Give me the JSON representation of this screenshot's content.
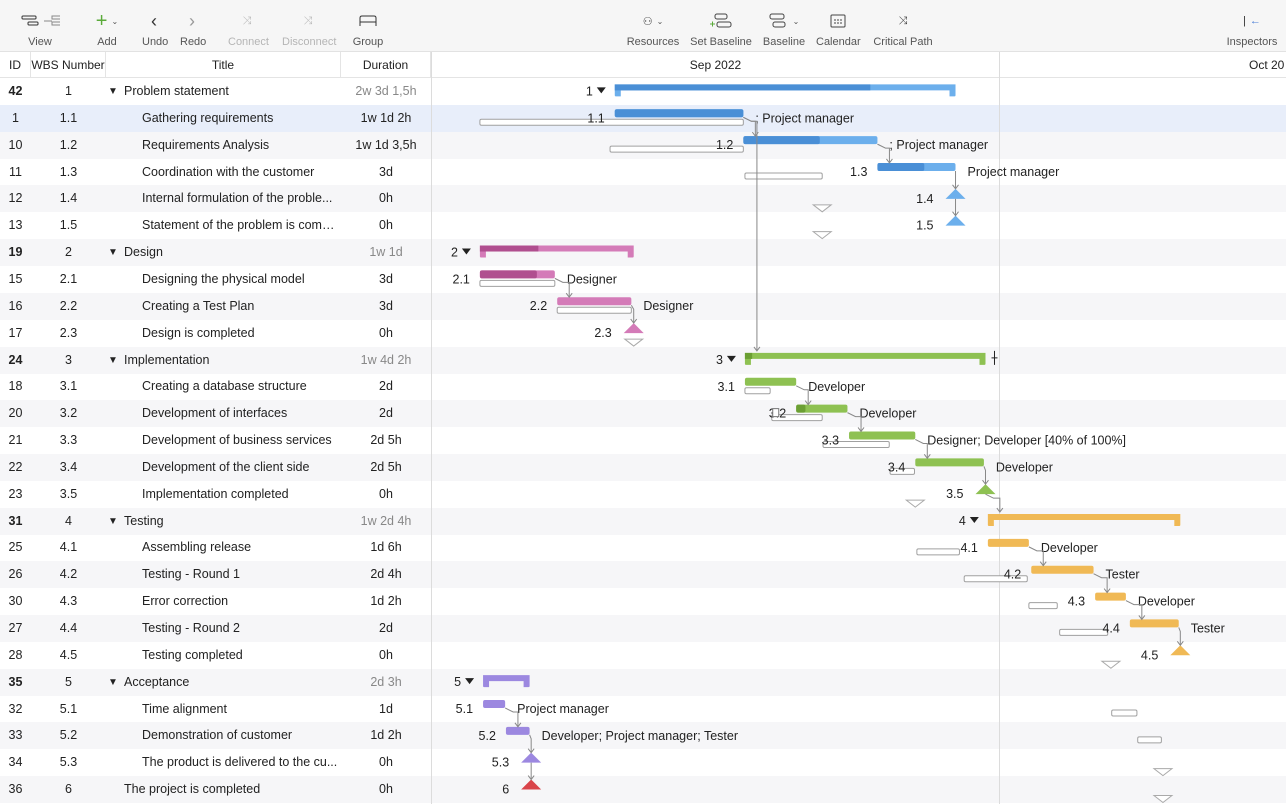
{
  "toolbar": {
    "items": [
      {
        "label": "View",
        "icon": "view-icon"
      },
      {
        "label": "Add",
        "icon": "plus-icon"
      },
      {
        "label": "Undo",
        "icon": "chevron-left-icon"
      },
      {
        "label": "Redo",
        "icon": "chevron-right-icon"
      },
      {
        "label": "Connect",
        "icon": "connect-icon",
        "disabled": true
      },
      {
        "label": "Disconnect",
        "icon": "disconnect-icon",
        "disabled": true
      },
      {
        "label": "Group",
        "icon": "group-icon"
      },
      {
        "label": "Resources",
        "icon": "resources-icon"
      },
      {
        "label": "Set Baseline",
        "icon": "set-baseline-icon"
      },
      {
        "label": "Baseline",
        "icon": "baseline-icon"
      },
      {
        "label": "Calendar",
        "icon": "calendar-icon"
      },
      {
        "label": "Critical Path",
        "icon": "critical-path-icon"
      },
      {
        "label": "Inspectors",
        "icon": "inspectors-icon"
      }
    ]
  },
  "columns": {
    "id": "ID",
    "wbs": "WBS Number",
    "title": "Title",
    "duration": "Duration"
  },
  "timeline": {
    "months": [
      "Sep 2022",
      "Oct 20"
    ]
  },
  "colors": {
    "1": [
      "#4a8fd6",
      "#6cafec"
    ],
    "2": [
      "#b04e8f",
      "#d47bb8"
    ],
    "3": [
      "#6b9f33",
      "#8ec152"
    ],
    "4": [
      "#e0a23c",
      "#f0b955"
    ],
    "5": [
      "#8a74d6",
      "#9c88e0"
    ],
    "6": [
      "#d9444a",
      "#d9444a"
    ],
    "baseline": "#a0a0a0",
    "selected_row": "#e8eefa"
  },
  "rows": [
    {
      "id": "42",
      "wbs": "1",
      "title": "Problem statement",
      "duration": "2w 3d 1,5h",
      "type": "summary",
      "start": "2022-09-10T17:00",
      "finish": "2022-09-28T17:00",
      "progress": 0.75
    },
    {
      "id": "1",
      "wbs": "1.1",
      "title": "Gathering requirements",
      "duration": "1w 1d 2h",
      "type": "task",
      "start": "2022-09-10T17:00",
      "finish": "2022-09-17T12:00",
      "bstart": "2022-09-03T14:00",
      "bfinish": "2022-09-17T12:00",
      "progress": 1,
      "resources": "; Project manager",
      "selected": true
    },
    {
      "id": "10",
      "wbs": "1.2",
      "title": "Requirements Analysis",
      "duration": "1w 1d 3,5h",
      "type": "task",
      "start": "2022-09-17T12:00",
      "finish": "2022-09-24T14:00",
      "bstart": "2022-09-10T11:00",
      "bfinish": "2022-09-17T12:00",
      "progress": 0.57,
      "resources": "; Project manager"
    },
    {
      "id": "11",
      "wbs": "1.3",
      "title": "Coordination with the customer",
      "duration": "3d",
      "type": "task",
      "start": "2022-09-24T14:00",
      "finish": "2022-09-28T17:00",
      "bstart": "2022-09-17T14:00",
      "bfinish": "2022-09-21T16:00",
      "progress": 0.6,
      "resources": "Project manager"
    },
    {
      "id": "12",
      "wbs": "1.4",
      "title": "Internal formulation of the proble...",
      "duration": "0h",
      "type": "milestone",
      "start": "2022-09-28T17:00",
      "bstart": "2022-09-21T16:00"
    },
    {
      "id": "13",
      "wbs": "1.5",
      "title": "Statement of the problem is comp...",
      "duration": "0h",
      "type": "milestone",
      "start": "2022-09-28T17:00",
      "bstart": "2022-09-21T16:00"
    },
    {
      "id": "19",
      "wbs": "2",
      "title": "Design",
      "duration": "1w 1d",
      "type": "summary",
      "start": "2022-09-03T14:00",
      "finish": "2022-09-11T17:00",
      "progress": 0.38
    },
    {
      "id": "15",
      "wbs": "2.1",
      "title": "Designing the physical model",
      "duration": "3d",
      "type": "task",
      "start": "2022-09-03T14:00",
      "finish": "2022-09-07T13:00",
      "bstart": "2022-09-03T14:00",
      "bfinish": "2022-09-07T13:00",
      "progress": 0.76,
      "resources": "Designer"
    },
    {
      "id": "16",
      "wbs": "2.2",
      "title": "Creating a Test Plan",
      "duration": "3d",
      "type": "task",
      "start": "2022-09-07T16:00",
      "finish": "2022-09-11T14:00",
      "bstart": "2022-09-07T16:00",
      "bfinish": "2022-09-11T14:00",
      "progress": 0,
      "resources": "Designer"
    },
    {
      "id": "17",
      "wbs": "2.3",
      "title": "Design is completed",
      "duration": "0h",
      "type": "milestone",
      "start": "2022-09-11T17:00",
      "bstart": "2022-09-11T17:00"
    },
    {
      "id": "24",
      "wbs": "3",
      "title": "Implementation",
      "duration": "1w 4d 2h",
      "type": "summary",
      "start": "2022-09-17T14:00",
      "finish": "2022-09-30T07:00",
      "progress": 0.03
    },
    {
      "id": "18",
      "wbs": "3.1",
      "title": "Creating a database structure",
      "duration": "2d",
      "type": "task",
      "start": "2022-09-17T14:00",
      "finish": "2022-09-20T07:00",
      "bstart": "2022-09-17T14:00",
      "bfinish": "2022-09-18T22:00",
      "progress": 0,
      "resources": "Developer"
    },
    {
      "id": "20",
      "wbs": "3.2",
      "title": "Development of interfaces",
      "duration": "2d",
      "type": "task",
      "start": "2022-09-20T07:00",
      "finish": "2022-09-23T00:00",
      "bstart": "2022-09-19T00:00",
      "bfinish": "2022-09-21T16:00",
      "progress": 0.18,
      "resources": "Developer",
      "note": true
    },
    {
      "id": "21",
      "wbs": "3.3",
      "title": "Development of business services",
      "duration": "2d 5h",
      "type": "task",
      "start": "2022-09-23T02:00",
      "finish": "2022-09-26T14:00",
      "bstart": "2022-09-21T17:00",
      "bfinish": "2022-09-25T05:00",
      "progress": 0,
      "resources": "Designer; Developer [40% of 100%]"
    },
    {
      "id": "22",
      "wbs": "3.4",
      "title": "Development of the client side",
      "duration": "2d 5h",
      "type": "task",
      "start": "2022-09-26T14:00",
      "finish": "2022-09-30T05:00",
      "bstart": "2022-09-25T06:00",
      "bfinish": "2022-09-26T13:00",
      "progress": 0,
      "resources": "Developer"
    },
    {
      "id": "23",
      "wbs": "3.5",
      "title": "Implementation completed",
      "duration": "0h",
      "type": "milestone",
      "start": "2022-09-30T07:00",
      "bstart": "2022-09-26T14:00"
    },
    {
      "id": "31",
      "wbs": "4",
      "title": "Testing",
      "duration": "1w 2d 4h",
      "type": "summary",
      "start": "2022-09-30T10:00",
      "finish": "2022-10-10T14:00",
      "progress": 0
    },
    {
      "id": "25",
      "wbs": "4.1",
      "title": "Assembling release",
      "duration": "1d 6h",
      "type": "task",
      "start": "2022-09-30T10:00",
      "finish": "2022-10-02T14:00",
      "bstart": "2022-09-26T16:00",
      "bfinish": "2022-09-28T22:00",
      "progress": 0,
      "resources": "Developer"
    },
    {
      "id": "26",
      "wbs": "4.2",
      "title": "Testing - Round 1",
      "duration": "2d 4h",
      "type": "task",
      "start": "2022-10-02T17:00",
      "finish": "2022-10-06T00:00",
      "bstart": "2022-09-29T04:00",
      "bfinish": "2022-10-02T12:00",
      "progress": 0,
      "resources": "Tester"
    },
    {
      "id": "30",
      "wbs": "4.3",
      "title": "Error correction",
      "duration": "1d 2h",
      "type": "task",
      "start": "2022-10-06T02:00",
      "finish": "2022-10-07T17:00",
      "bstart": "2022-10-02T14:00",
      "bfinish": "2022-10-04T02:00",
      "progress": 0,
      "resources": "Developer"
    },
    {
      "id": "27",
      "wbs": "4.4",
      "title": "Testing - Round 2",
      "duration": "2d",
      "type": "task",
      "start": "2022-10-07T22:00",
      "finish": "2022-10-10T12:00",
      "bstart": "2022-10-04T05:00",
      "bfinish": "2022-10-06T18:00",
      "progress": 0,
      "resources": "Tester"
    },
    {
      "id": "28",
      "wbs": "4.5",
      "title": "Testing completed",
      "duration": "0h",
      "type": "milestone",
      "start": "2022-10-10T14:00",
      "bstart": "2022-10-06T22:00"
    },
    {
      "id": "35",
      "wbs": "5",
      "title": "Acceptance",
      "duration": "2d 3h",
      "type": "summary",
      "start": "2022-09-03T18:00",
      "finish": "2022-09-06T05:00",
      "progress": 0
    },
    {
      "id": "32",
      "wbs": "5.1",
      "title": "Time alignment",
      "duration": "1d",
      "type": "task",
      "start": "2022-09-03T18:00",
      "finish": "2022-09-04T22:00",
      "bstart": "2022-10-06T23:00",
      "bfinish": "2022-10-08T07:00",
      "progress": 0,
      "resources": "Project manager"
    },
    {
      "id": "33",
      "wbs": "5.2",
      "title": "Demonstration of customer",
      "duration": "1d 2h",
      "type": "task",
      "start": "2022-09-04T23:00",
      "finish": "2022-09-06T05:00",
      "bstart": "2022-10-08T08:00",
      "bfinish": "2022-10-09T14:00",
      "progress": 0,
      "resources": "Developer; Project manager; Tester"
    },
    {
      "id": "34",
      "wbs": "5.3",
      "title": "The product is delivered to the cu...",
      "duration": "0h",
      "type": "milestone",
      "start": "2022-09-06T07:00",
      "bstart": "2022-10-09T16:00"
    },
    {
      "id": "36",
      "wbs": "6",
      "title": "The project is completed",
      "duration": "0h",
      "type": "milestone",
      "top": true,
      "start": "2022-09-06T07:00",
      "bstart": "2022-10-09T16:00"
    }
  ],
  "links": [
    [
      "1.1",
      "1.2"
    ],
    [
      "1.2",
      "1.3"
    ],
    [
      "1.3",
      "1.4"
    ],
    [
      "1.4",
      "1.5"
    ],
    [
      "1.1",
      "3"
    ],
    [
      "2.1",
      "2.2"
    ],
    [
      "2.2",
      "2.3"
    ],
    [
      "3.1",
      "3.2"
    ],
    [
      "3.2",
      "3.3"
    ],
    [
      "3.3",
      "3.4"
    ],
    [
      "3.4",
      "3.5"
    ],
    [
      "3.5",
      "4"
    ],
    [
      "4.1",
      "4.2"
    ],
    [
      "4.2",
      "4.3"
    ],
    [
      "4.3",
      "4.4"
    ],
    [
      "4.4",
      "4.5"
    ],
    [
      "5.1",
      "5.2"
    ],
    [
      "5.2",
      "5.3"
    ],
    [
      "5.3",
      "6"
    ]
  ]
}
